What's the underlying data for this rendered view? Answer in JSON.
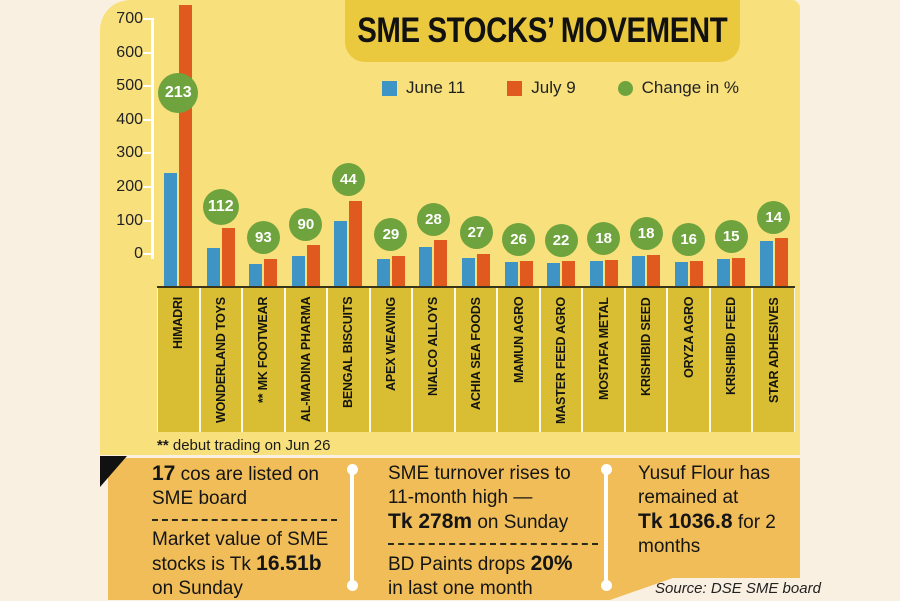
{
  "title": "SME STOCKS’ MOVEMENT",
  "legend": [
    {
      "label": "June 11",
      "color": "#3e95c5",
      "shape": "square"
    },
    {
      "label": "July 9",
      "color": "#e05a1f",
      "shape": "square"
    },
    {
      "label": "Change in %",
      "color": "#6ea33d",
      "shape": "circle"
    }
  ],
  "chart_data": {
    "type": "bar",
    "title": "SME STOCKS’ MOVEMENT",
    "categories": [
      "HIMADRI",
      "WONDERLAND TOYS",
      "** MK FOOTWEAR",
      "AL-MADINA PHARMA",
      "BENGAL BISCUITS",
      "APEX WEAVING",
      "NIALCO ALLOYS",
      "ACHIA SEA FOODS",
      "MAMUN AGRO",
      "MASTER FEED AGRO",
      "MOSTAFA METAL",
      "KRISHIBID SEED",
      "ORYZA AGRO",
      "KRISHIBID FEED",
      "STAR ADHESIVES"
    ],
    "series": [
      {
        "name": "June 11",
        "values": [
          242,
          18,
          -28,
          -5,
          99,
          -15,
          20,
          -10,
          -23,
          -25,
          -21,
          -6,
          -24,
          -15,
          39
        ]
      },
      {
        "name": "July 9",
        "values": [
          745,
          78,
          -13,
          27,
          159,
          -5,
          42,
          2,
          -19,
          -21,
          -16,
          -1,
          -20,
          -11,
          47
        ]
      }
    ],
    "change_pct": [
      213,
      112,
      93,
      90,
      44,
      29,
      28,
      27,
      26,
      22,
      18,
      18,
      16,
      15,
      14
    ],
    "yticks": [
      700,
      600,
      500,
      400,
      300,
      200,
      100,
      0
    ],
    "ylim": [
      -100,
      700
    ],
    "bar_baseline": -100,
    "grid": false,
    "legend_position": "top"
  },
  "footnote": {
    "marker": "**",
    "text": " debut trading on Jun 26"
  },
  "notes": {
    "sections": [
      {
        "paragraphs": [
          {
            "runs": [
              {
                "t": "17",
                "b": true
              },
              {
                "t": " cos are listed on\nSME board",
                "b": false
              }
            ]
          },
          {
            "runs": [
              {
                "t": "Market value of SME\nstocks is Tk ",
                "b": false
              },
              {
                "t": "16.51b",
                "b": true
              },
              {
                "t": "\non Sunday",
                "b": false
              }
            ]
          }
        ]
      },
      {
        "paragraphs": [
          {
            "runs": [
              {
                "t": "SME turnover rises to\n11-month high —\n",
                "b": false
              },
              {
                "t": "Tk 278m",
                "b": true
              },
              {
                "t": " on Sunday",
                "b": false
              }
            ]
          },
          {
            "runs": [
              {
                "t": "BD Paints drops ",
                "b": false
              },
              {
                "t": "20%",
                "b": true
              },
              {
                "t": "\nin last one month",
                "b": false
              }
            ]
          }
        ]
      },
      {
        "paragraphs": [
          {
            "runs": [
              {
                "t": "Yusuf Flour has\nremained at\n",
                "b": false
              },
              {
                "t": "Tk 1036.8",
                "b": true
              },
              {
                "t": " for 2\nmonths",
                "b": false
              }
            ]
          }
        ]
      }
    ]
  },
  "source": "Source: DSE SME board",
  "colors": {
    "background": "#faf0e2",
    "panel": "#f8e17c",
    "title_banner": "#eac93e",
    "category_band": "#d9be33",
    "june11_bar": "#3e95c5",
    "july9_bar": "#e05a1f",
    "change_badge": "#6ea33d",
    "notes_band": "#f0bd58",
    "text": "#161616"
  }
}
